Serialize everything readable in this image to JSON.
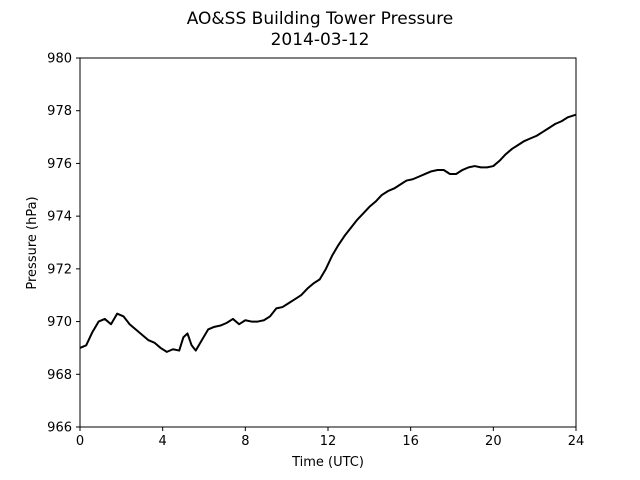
{
  "chart_data": {
    "type": "line",
    "title": "AO&SS Building Tower Pressure",
    "subtitle": "2014-03-12",
    "xlabel": "Time (UTC)",
    "ylabel": "Pressure (hPa)",
    "xlim": [
      0,
      24
    ],
    "ylim": [
      966,
      980
    ],
    "xticks": [
      0,
      4,
      8,
      12,
      16,
      20,
      24
    ],
    "yticks": [
      966,
      968,
      970,
      972,
      974,
      976,
      978,
      980
    ],
    "grid": false,
    "legend": "none",
    "line_color": "#000000",
    "series": [
      {
        "x": [
          0,
          0.3,
          0.6,
          0.9,
          1.2,
          1.5,
          1.8,
          2.1,
          2.4,
          2.7,
          3.0,
          3.3,
          3.6,
          3.9,
          4.2,
          4.5,
          4.8,
          5.0,
          5.2,
          5.4,
          5.6,
          5.9,
          6.2,
          6.5,
          6.8,
          7.1,
          7.4,
          7.7,
          8.0,
          8.3,
          8.6,
          8.9,
          9.2,
          9.5,
          9.8,
          10.1,
          10.4,
          10.7,
          11.0,
          11.3,
          11.6,
          11.9,
          12.2,
          12.5,
          12.8,
          13.1,
          13.4,
          13.7,
          14.0,
          14.3,
          14.6,
          14.9,
          15.2,
          15.5,
          15.8,
          16.1,
          16.4,
          16.7,
          17.0,
          17.3,
          17.6,
          17.9,
          18.2,
          18.5,
          18.8,
          19.1,
          19.4,
          19.7,
          20.0,
          20.3,
          20.6,
          20.9,
          21.2,
          21.5,
          21.8,
          22.1,
          22.4,
          22.7,
          23.0,
          23.3,
          23.6,
          24.0
        ],
        "values": [
          969.0,
          969.1,
          969.6,
          970.0,
          970.1,
          969.9,
          970.3,
          970.2,
          969.9,
          969.7,
          969.5,
          969.3,
          969.2,
          969.0,
          968.85,
          968.95,
          968.9,
          969.4,
          969.55,
          969.1,
          968.9,
          969.3,
          969.7,
          969.8,
          969.85,
          969.95,
          970.1,
          969.9,
          970.05,
          970.0,
          970.0,
          970.05,
          970.2,
          970.5,
          970.55,
          970.7,
          970.85,
          971.0,
          971.25,
          971.45,
          971.6,
          972.0,
          972.5,
          972.9,
          973.25,
          973.55,
          973.85,
          974.1,
          974.35,
          974.55,
          974.8,
          974.95,
          975.05,
          975.2,
          975.35,
          975.4,
          975.5,
          975.6,
          975.7,
          975.75,
          975.75,
          975.6,
          975.6,
          975.75,
          975.85,
          975.9,
          975.85,
          975.85,
          975.9,
          976.1,
          976.35,
          976.55,
          976.7,
          976.85,
          976.95,
          977.05,
          977.2,
          977.35,
          977.5,
          977.6,
          977.75,
          977.85
        ]
      }
    ]
  }
}
